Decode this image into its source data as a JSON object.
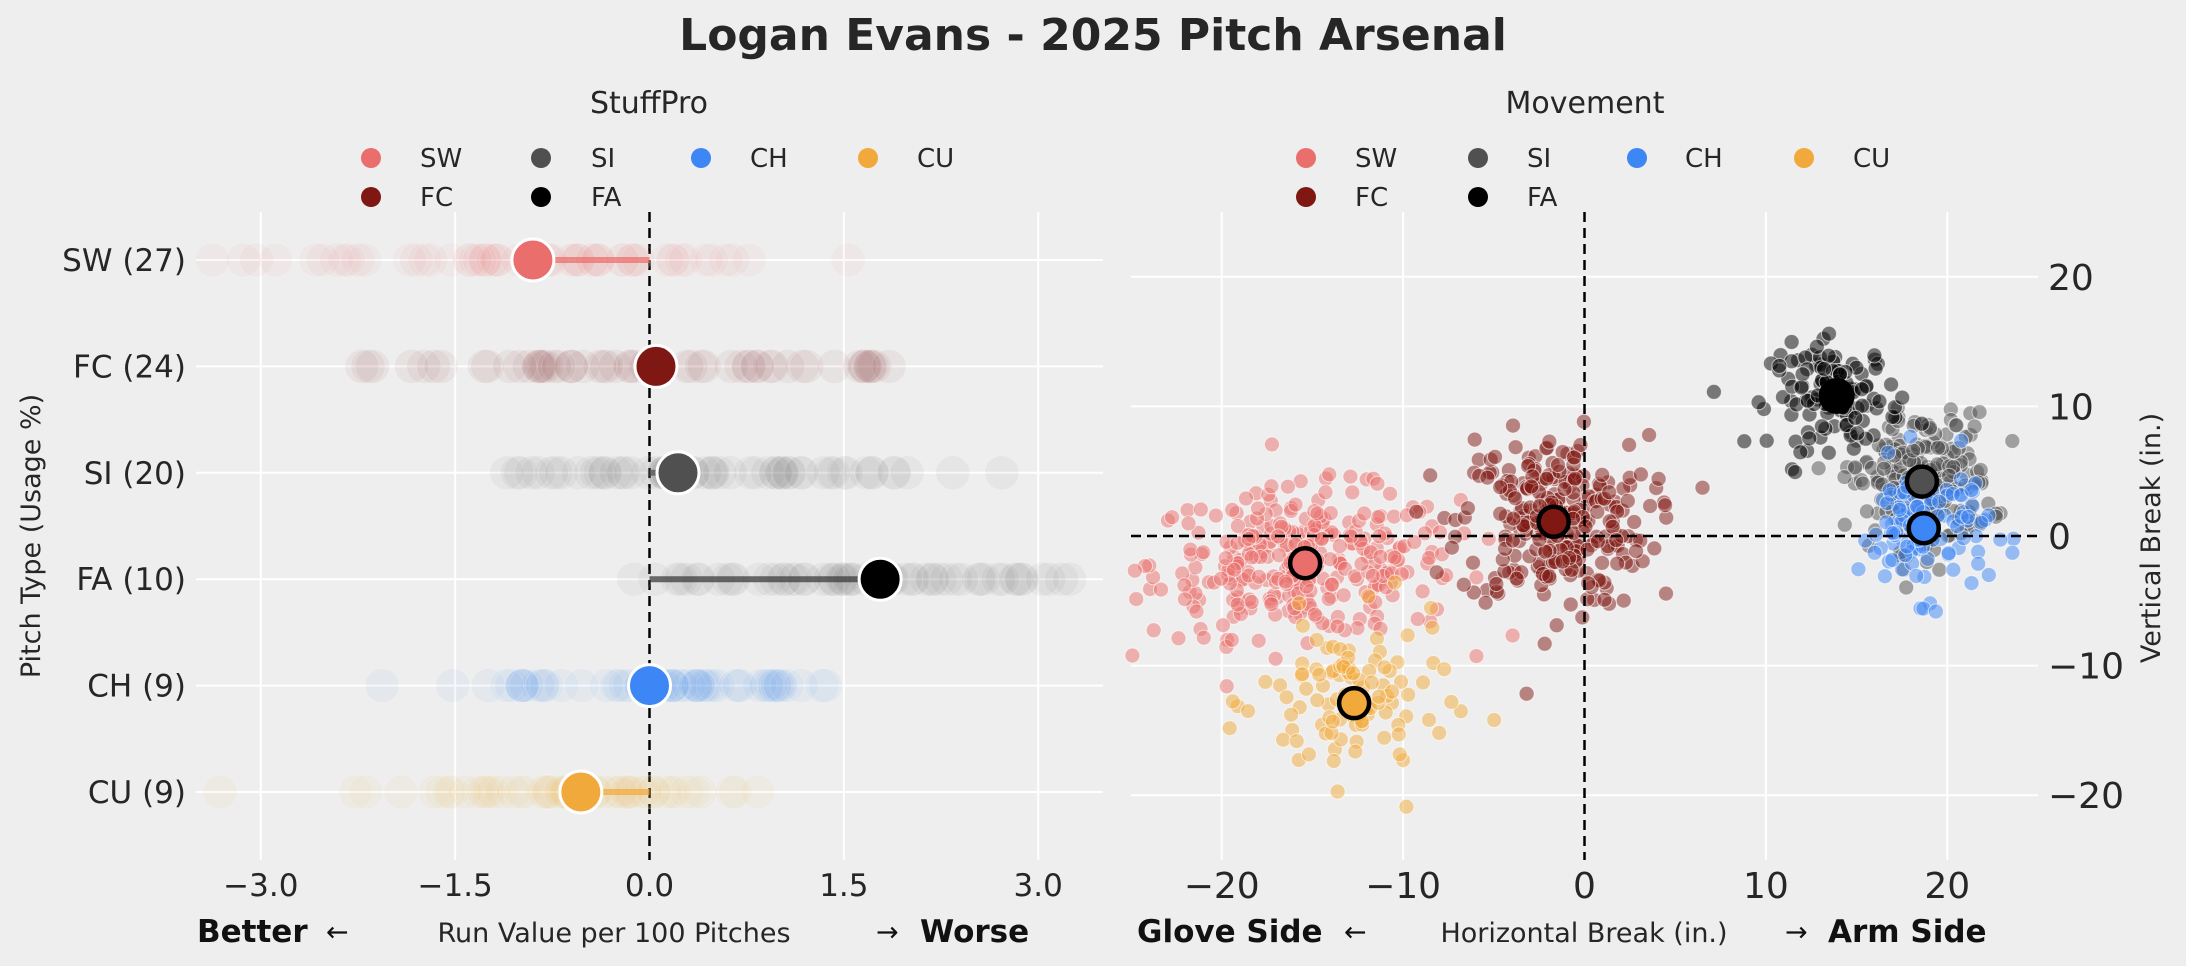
{
  "title": "Logan Evans - 2025 Pitch Arsenal",
  "colors": {
    "background": "#eeeeee",
    "grid": "#ffffff",
    "SW": "#ea6f6c",
    "FC": "#7f1812",
    "SI": "#505050",
    "FA": "#000000",
    "CH": "#3d86f5",
    "CU": "#f1a93c"
  },
  "chart_data": [
    {
      "type": "scatter",
      "subtitle": "StuffPro",
      "legend": {
        "placement": "top-center",
        "entries": [
          "SW",
          "SI",
          "CH",
          "CU",
          "FC",
          "FA"
        ]
      },
      "ylabel": "Pitch Type (Usage %)",
      "xlabel": "Run Value per 100 Pitches",
      "xlabel_left": "Better",
      "xlabel_right": "Worse",
      "arrow_left": "←",
      "arrow_right": "→",
      "xlim": [
        -3.5,
        3.5
      ],
      "xticks": [
        -3.0,
        -1.5,
        0.0,
        1.5,
        3.0
      ],
      "xtick_labels": [
        "−3.0",
        "−1.5",
        "0.0",
        "1.5",
        "3.0"
      ],
      "reference_line": 0.0,
      "grid": true,
      "categories": [
        "SW (27)",
        "FC (24)",
        "SI (20)",
        "FA (10)",
        "CH (9)",
        "CU (9)"
      ],
      "pitch_types": [
        "SW",
        "FC",
        "SI",
        "FA",
        "CH",
        "CU"
      ],
      "usage_pct": [
        27,
        24,
        20,
        10,
        9,
        9
      ],
      "values": [
        -0.9,
        0.05,
        0.22,
        1.78,
        0.0,
        -0.53
      ],
      "spread": [
        1.2,
        1.1,
        1.0,
        1.0,
        0.9,
        0.8
      ]
    },
    {
      "type": "scatter",
      "subtitle": "Movement",
      "legend": {
        "placement": "top-center",
        "entries": [
          "SW",
          "SI",
          "CH",
          "CU",
          "FC",
          "FA"
        ]
      },
      "xlabel": "Horizontal Break (in.)",
      "ylabel": "Vertical Break (in.)",
      "xlabel_left": "Glove Side",
      "xlabel_right": "Arm Side",
      "arrow_left": "←",
      "arrow_right": "→",
      "xlim": [
        -25,
        25
      ],
      "ylim": [
        -25,
        25
      ],
      "xticks": [
        -20,
        -10,
        0,
        10,
        20
      ],
      "xtick_labels": [
        "−20",
        "−10",
        "0",
        "10",
        "20"
      ],
      "yticks": [
        20,
        10,
        0,
        -10,
        -20
      ],
      "ytick_labels": [
        "20",
        "10",
        "0",
        "−10",
        "−20"
      ],
      "grid": true,
      "series": [
        {
          "name": "SW",
          "mean_hb": -15.4,
          "mean_vb": -2.1,
          "sd_hb": 4.2,
          "sd_vb": 2.8,
          "count": 330
        },
        {
          "name": "FC",
          "mean_hb": -1.7,
          "mean_vb": 1.1,
          "sd_hb": 2.6,
          "sd_vb": 3.3,
          "count": 290
        },
        {
          "name": "SI",
          "mean_hb": 18.6,
          "mean_vb": 4.2,
          "sd_hb": 1.9,
          "sd_vb": 2.6,
          "count": 230
        },
        {
          "name": "FA",
          "mean_hb": 13.9,
          "mean_vb": 10.8,
          "sd_hb": 1.8,
          "sd_vb": 2.0,
          "count": 120
        },
        {
          "name": "CH",
          "mean_hb": 18.7,
          "mean_vb": 0.6,
          "sd_hb": 1.8,
          "sd_vb": 2.6,
          "count": 110
        },
        {
          "name": "CU",
          "mean_hb": -12.7,
          "mean_vb": -12.9,
          "sd_hb": 2.6,
          "sd_vb": 3.2,
          "count": 110
        }
      ]
    }
  ]
}
